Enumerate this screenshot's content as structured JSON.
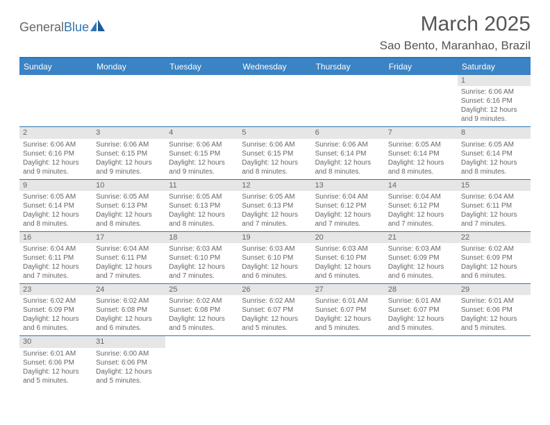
{
  "logo": {
    "text1": "General",
    "text2": "Blue"
  },
  "title": "March 2025",
  "location": "Sao Bento, Maranhao, Brazil",
  "weekdays": [
    "Sunday",
    "Monday",
    "Tuesday",
    "Wednesday",
    "Thursday",
    "Friday",
    "Saturday"
  ],
  "colors": {
    "header_bar": "#3a83c4",
    "accent": "#2e75b6",
    "daynum_bg": "#e6e6e6",
    "text": "#666666",
    "white": "#ffffff"
  },
  "weeks": [
    [
      {
        "n": "",
        "sr": "",
        "ss": "",
        "dl1": "",
        "dl2": ""
      },
      {
        "n": "",
        "sr": "",
        "ss": "",
        "dl1": "",
        "dl2": ""
      },
      {
        "n": "",
        "sr": "",
        "ss": "",
        "dl1": "",
        "dl2": ""
      },
      {
        "n": "",
        "sr": "",
        "ss": "",
        "dl1": "",
        "dl2": ""
      },
      {
        "n": "",
        "sr": "",
        "ss": "",
        "dl1": "",
        "dl2": ""
      },
      {
        "n": "",
        "sr": "",
        "ss": "",
        "dl1": "",
        "dl2": ""
      },
      {
        "n": "1",
        "sr": "Sunrise: 6:06 AM",
        "ss": "Sunset: 6:16 PM",
        "dl1": "Daylight: 12 hours",
        "dl2": "and 9 minutes."
      }
    ],
    [
      {
        "n": "2",
        "sr": "Sunrise: 6:06 AM",
        "ss": "Sunset: 6:16 PM",
        "dl1": "Daylight: 12 hours",
        "dl2": "and 9 minutes."
      },
      {
        "n": "3",
        "sr": "Sunrise: 6:06 AM",
        "ss": "Sunset: 6:15 PM",
        "dl1": "Daylight: 12 hours",
        "dl2": "and 9 minutes."
      },
      {
        "n": "4",
        "sr": "Sunrise: 6:06 AM",
        "ss": "Sunset: 6:15 PM",
        "dl1": "Daylight: 12 hours",
        "dl2": "and 9 minutes."
      },
      {
        "n": "5",
        "sr": "Sunrise: 6:06 AM",
        "ss": "Sunset: 6:15 PM",
        "dl1": "Daylight: 12 hours",
        "dl2": "and 8 minutes."
      },
      {
        "n": "6",
        "sr": "Sunrise: 6:06 AM",
        "ss": "Sunset: 6:14 PM",
        "dl1": "Daylight: 12 hours",
        "dl2": "and 8 minutes."
      },
      {
        "n": "7",
        "sr": "Sunrise: 6:05 AM",
        "ss": "Sunset: 6:14 PM",
        "dl1": "Daylight: 12 hours",
        "dl2": "and 8 minutes."
      },
      {
        "n": "8",
        "sr": "Sunrise: 6:05 AM",
        "ss": "Sunset: 6:14 PM",
        "dl1": "Daylight: 12 hours",
        "dl2": "and 8 minutes."
      }
    ],
    [
      {
        "n": "9",
        "sr": "Sunrise: 6:05 AM",
        "ss": "Sunset: 6:14 PM",
        "dl1": "Daylight: 12 hours",
        "dl2": "and 8 minutes."
      },
      {
        "n": "10",
        "sr": "Sunrise: 6:05 AM",
        "ss": "Sunset: 6:13 PM",
        "dl1": "Daylight: 12 hours",
        "dl2": "and 8 minutes."
      },
      {
        "n": "11",
        "sr": "Sunrise: 6:05 AM",
        "ss": "Sunset: 6:13 PM",
        "dl1": "Daylight: 12 hours",
        "dl2": "and 8 minutes."
      },
      {
        "n": "12",
        "sr": "Sunrise: 6:05 AM",
        "ss": "Sunset: 6:13 PM",
        "dl1": "Daylight: 12 hours",
        "dl2": "and 7 minutes."
      },
      {
        "n": "13",
        "sr": "Sunrise: 6:04 AM",
        "ss": "Sunset: 6:12 PM",
        "dl1": "Daylight: 12 hours",
        "dl2": "and 7 minutes."
      },
      {
        "n": "14",
        "sr": "Sunrise: 6:04 AM",
        "ss": "Sunset: 6:12 PM",
        "dl1": "Daylight: 12 hours",
        "dl2": "and 7 minutes."
      },
      {
        "n": "15",
        "sr": "Sunrise: 6:04 AM",
        "ss": "Sunset: 6:11 PM",
        "dl1": "Daylight: 12 hours",
        "dl2": "and 7 minutes."
      }
    ],
    [
      {
        "n": "16",
        "sr": "Sunrise: 6:04 AM",
        "ss": "Sunset: 6:11 PM",
        "dl1": "Daylight: 12 hours",
        "dl2": "and 7 minutes."
      },
      {
        "n": "17",
        "sr": "Sunrise: 6:04 AM",
        "ss": "Sunset: 6:11 PM",
        "dl1": "Daylight: 12 hours",
        "dl2": "and 7 minutes."
      },
      {
        "n": "18",
        "sr": "Sunrise: 6:03 AM",
        "ss": "Sunset: 6:10 PM",
        "dl1": "Daylight: 12 hours",
        "dl2": "and 7 minutes."
      },
      {
        "n": "19",
        "sr": "Sunrise: 6:03 AM",
        "ss": "Sunset: 6:10 PM",
        "dl1": "Daylight: 12 hours",
        "dl2": "and 6 minutes."
      },
      {
        "n": "20",
        "sr": "Sunrise: 6:03 AM",
        "ss": "Sunset: 6:10 PM",
        "dl1": "Daylight: 12 hours",
        "dl2": "and 6 minutes."
      },
      {
        "n": "21",
        "sr": "Sunrise: 6:03 AM",
        "ss": "Sunset: 6:09 PM",
        "dl1": "Daylight: 12 hours",
        "dl2": "and 6 minutes."
      },
      {
        "n": "22",
        "sr": "Sunrise: 6:02 AM",
        "ss": "Sunset: 6:09 PM",
        "dl1": "Daylight: 12 hours",
        "dl2": "and 6 minutes."
      }
    ],
    [
      {
        "n": "23",
        "sr": "Sunrise: 6:02 AM",
        "ss": "Sunset: 6:09 PM",
        "dl1": "Daylight: 12 hours",
        "dl2": "and 6 minutes."
      },
      {
        "n": "24",
        "sr": "Sunrise: 6:02 AM",
        "ss": "Sunset: 6:08 PM",
        "dl1": "Daylight: 12 hours",
        "dl2": "and 6 minutes."
      },
      {
        "n": "25",
        "sr": "Sunrise: 6:02 AM",
        "ss": "Sunset: 6:08 PM",
        "dl1": "Daylight: 12 hours",
        "dl2": "and 5 minutes."
      },
      {
        "n": "26",
        "sr": "Sunrise: 6:02 AM",
        "ss": "Sunset: 6:07 PM",
        "dl1": "Daylight: 12 hours",
        "dl2": "and 5 minutes."
      },
      {
        "n": "27",
        "sr": "Sunrise: 6:01 AM",
        "ss": "Sunset: 6:07 PM",
        "dl1": "Daylight: 12 hours",
        "dl2": "and 5 minutes."
      },
      {
        "n": "28",
        "sr": "Sunrise: 6:01 AM",
        "ss": "Sunset: 6:07 PM",
        "dl1": "Daylight: 12 hours",
        "dl2": "and 5 minutes."
      },
      {
        "n": "29",
        "sr": "Sunrise: 6:01 AM",
        "ss": "Sunset: 6:06 PM",
        "dl1": "Daylight: 12 hours",
        "dl2": "and 5 minutes."
      }
    ],
    [
      {
        "n": "30",
        "sr": "Sunrise: 6:01 AM",
        "ss": "Sunset: 6:06 PM",
        "dl1": "Daylight: 12 hours",
        "dl2": "and 5 minutes."
      },
      {
        "n": "31",
        "sr": "Sunrise: 6:00 AM",
        "ss": "Sunset: 6:06 PM",
        "dl1": "Daylight: 12 hours",
        "dl2": "and 5 minutes."
      },
      {
        "n": "",
        "sr": "",
        "ss": "",
        "dl1": "",
        "dl2": ""
      },
      {
        "n": "",
        "sr": "",
        "ss": "",
        "dl1": "",
        "dl2": ""
      },
      {
        "n": "",
        "sr": "",
        "ss": "",
        "dl1": "",
        "dl2": ""
      },
      {
        "n": "",
        "sr": "",
        "ss": "",
        "dl1": "",
        "dl2": ""
      },
      {
        "n": "",
        "sr": "",
        "ss": "",
        "dl1": "",
        "dl2": ""
      }
    ]
  ]
}
